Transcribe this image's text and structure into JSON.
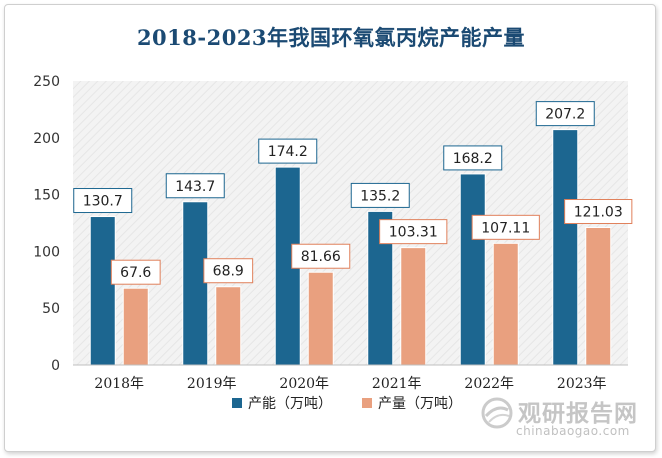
{
  "chart_data": {
    "type": "bar",
    "title": "2018-2023年我国环氧氯丙烷产能产量",
    "categories": [
      "2018年",
      "2019年",
      "2020年",
      "2021年",
      "2022年",
      "2023年"
    ],
    "series": [
      {
        "name": "产能（万吨）",
        "values": [
          130.7,
          143.7,
          174.2,
          135.2,
          168.2,
          207.2
        ],
        "color": "#1c6690",
        "label_border": "#1c6690"
      },
      {
        "name": "产量（万吨）",
        "values": [
          67.6,
          68.9,
          81.66,
          103.31,
          107.11,
          121.03
        ],
        "color": "#e9a07f",
        "label_border": "#e0805b"
      }
    ],
    "data_labels": [
      [
        "130.7",
        "143.7",
        "174.2",
        "135.2",
        "168.2",
        "207.2"
      ],
      [
        "67.6",
        "68.9",
        "81.66",
        "103.31",
        "107.11",
        "121.03"
      ]
    ],
    "ylim": [
      0,
      250
    ],
    "yticks": [
      0,
      50,
      100,
      150,
      200,
      250
    ],
    "legend_position": "bottom",
    "grid": false,
    "plot_background": "#f2f2f2"
  },
  "watermark": {
    "name": "观研报告网",
    "url": "chinabaogao.com",
    "icon": "globe-icon"
  }
}
